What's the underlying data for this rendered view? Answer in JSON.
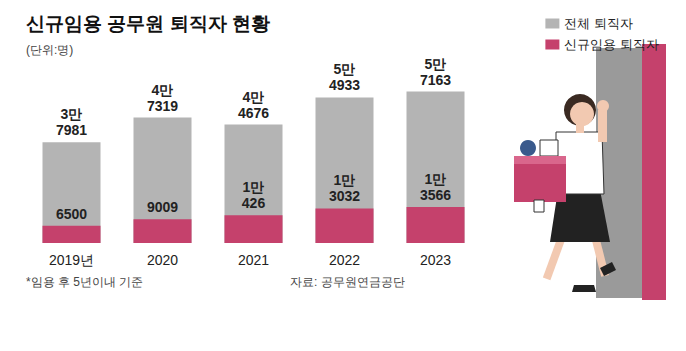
{
  "chart_data": {
    "type": "bar",
    "title": "신규임용 공무원 퇴직자 현황",
    "subtitle": "(단위:명)",
    "note": "*임용 후 5년이내 기준",
    "source": "자료: 공무원연금공단",
    "categories": [
      "2019년",
      "2020",
      "2021",
      "2022",
      "2023"
    ],
    "series": [
      {
        "name": "전체 퇴직자",
        "color": "#b4b4b4",
        "values": [
          37981,
          47319,
          44676,
          54933,
          57163
        ],
        "value_labels": [
          "3만\n7981",
          "4만\n7319",
          "4만\n4676",
          "5만\n4933",
          "5만\n7163"
        ]
      },
      {
        "name": "신규임용 퇴직자",
        "color": "#c5416c",
        "values": [
          6500,
          9009,
          10426,
          13032,
          13566
        ],
        "value_labels": [
          "6500",
          "9009",
          "1만\n426",
          "1만\n3032",
          "1만\n3566"
        ]
      }
    ],
    "ylim": [
      0,
      60000
    ],
    "stacked": false,
    "data_labels": true,
    "tick_labels": "x",
    "legend": "upper right",
    "grid": false
  }
}
